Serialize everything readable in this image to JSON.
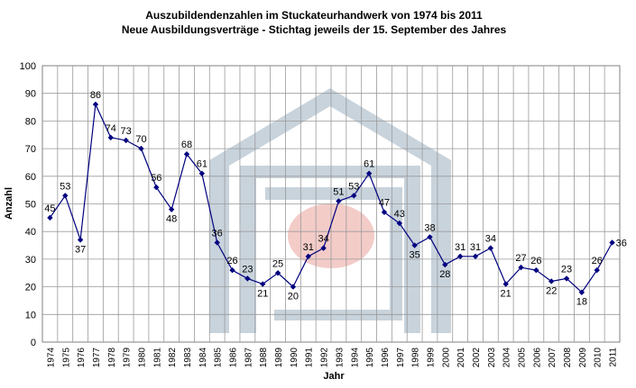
{
  "chart_data": {
    "type": "line",
    "title": "Auszubildendenzahlen im Stuckateurhandwerk von 1974 bis 2011",
    "subtitle": "Neue Ausbildungsverträge - Stichtag jeweils der 15. September des Jahres",
    "xlabel": "Jahr",
    "ylabel": "Anzahl",
    "ylim": [
      0,
      100
    ],
    "yticks": [
      0,
      10,
      20,
      30,
      40,
      50,
      60,
      70,
      80,
      90,
      100
    ],
    "grid": true,
    "legend": "none",
    "color": "#00007f",
    "watermark": "house-logo",
    "x": [
      "1974",
      "1975",
      "1976",
      "1977",
      "1978",
      "1979",
      "1980",
      "1981",
      "1982",
      "1983",
      "1984",
      "1985",
      "1986",
      "1987",
      "1988",
      "1989",
      "1990",
      "1991",
      "1992",
      "1993",
      "1994",
      "1995",
      "1996",
      "1997",
      "1998",
      "1999",
      "2000",
      "2001",
      "2002",
      "2003",
      "2004",
      "2005",
      "2006",
      "2007",
      "2008",
      "2009",
      "2010",
      "2011"
    ],
    "values": [
      45,
      53,
      37,
      86,
      74,
      73,
      70,
      56,
      48,
      68,
      61,
      36,
      26,
      23,
      21,
      25,
      20,
      31,
      34,
      51,
      53,
      61,
      47,
      43,
      35,
      38,
      28,
      31,
      31,
      34,
      21,
      27,
      26,
      22,
      23,
      18,
      26,
      36
    ],
    "data_labels": [
      "45",
      "53",
      "37",
      "86",
      "74",
      "73",
      "70",
      "56",
      "48",
      "68",
      "61",
      "36",
      "26",
      "23",
      "21",
      "25",
      "20",
      "31",
      "34",
      "51",
      "53",
      "61",
      "47",
      "43",
      "35",
      "38",
      "28",
      "31",
      "31",
      "34",
      "21",
      "27",
      "26",
      "22",
      "23",
      "18",
      "26",
      "36"
    ]
  }
}
